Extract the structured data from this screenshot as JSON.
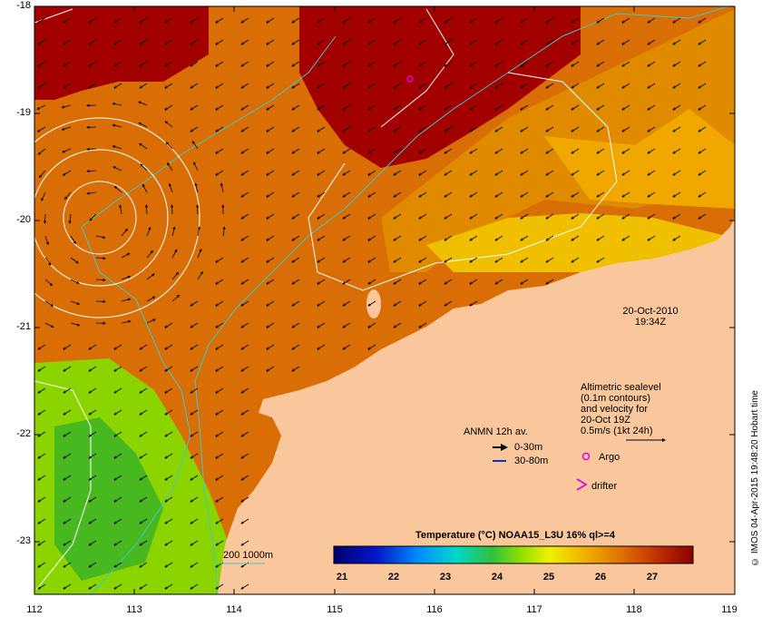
{
  "map": {
    "lat_ticks": [
      "-18",
      "-19",
      "-20",
      "-21",
      "-22",
      "-23"
    ],
    "lon_ticks": [
      "112",
      "113",
      "114",
      "115",
      "116",
      "117",
      "118",
      "119"
    ],
    "datetime_line1": "20-Oct-2010",
    "datetime_line2": "19:34Z",
    "sealevel_text": [
      "Altimetric sealevel",
      "(0.1m contours)",
      "and velocity for",
      "20-Oct 19Z",
      "0.5m/s (1kt 24h)"
    ],
    "anmn_title": "ANMN 12h av.",
    "anmn_rows": [
      "0-30m",
      "30-80m"
    ],
    "argo_label": "Argo",
    "drifter_label": "drifter",
    "isobath_label": "200  1000m",
    "colorbar_title": "Temperature (°C) NOAA15_L3U 16% ql>=4",
    "colorbar_ticks": [
      "21",
      "22",
      "23",
      "24",
      "25",
      "26",
      "27"
    ],
    "credit": "© IMOS 04-Apr-2015 19:48:20 Hobart time",
    "colors": {
      "land": "#f9c79b",
      "sea_warm": "#a30000",
      "sea_mid": "#d66a00",
      "sea_cool": "#7fd400",
      "isobath": "#40c8c8",
      "argo": "#e000e0"
    }
  }
}
